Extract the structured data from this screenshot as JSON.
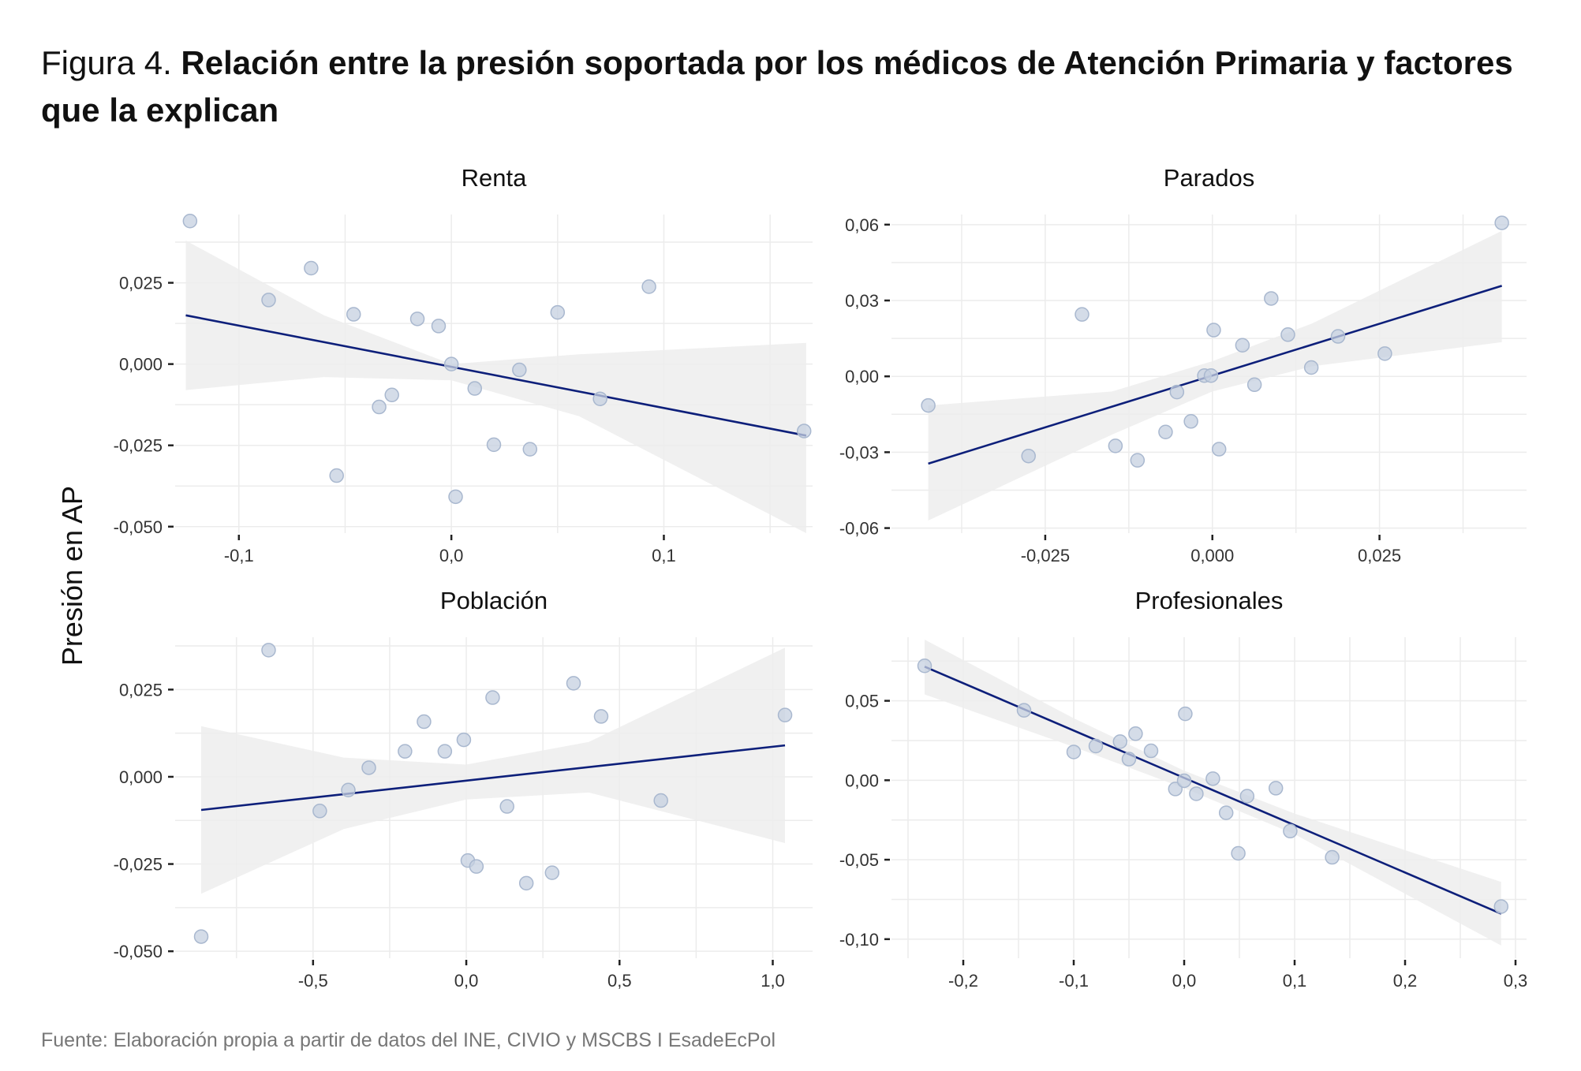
{
  "title": {
    "prefix": "Figura 4.",
    "main": "Relación entre la presión soportada por los médicos de Atención Primaria y factores que la explican"
  },
  "y_axis_label": "Presión en AP",
  "source": "Fuente: Elaboración propia a partir de datos del INE, CIVIO y MSCBS I EsadeEcPol",
  "colors": {
    "point_fill": "#c5d0e0",
    "point_stroke": "#a9b8cf",
    "line": "#0d1f7a",
    "band": "#ededed",
    "grid": "#ececec"
  },
  "chart_data": [
    {
      "type": "scatter",
      "title": "Renta",
      "xlim": [
        -0.13,
        0.17
      ],
      "ylim": [
        -0.052,
        0.046
      ],
      "x_ticks": [
        {
          "v": -0.1,
          "label": "-0,1"
        },
        {
          "v": 0.0,
          "label": "0,0"
        },
        {
          "v": 0.1,
          "label": "0,1"
        }
      ],
      "y_ticks": [
        {
          "v": 0.025,
          "label": "0,025"
        },
        {
          "v": 0.0,
          "label": "0,000"
        },
        {
          "v": -0.025,
          "label": "-0,025"
        },
        {
          "v": -0.05,
          "label": "-0,050"
        }
      ],
      "points": [
        [
          -0.123,
          0.044
        ],
        [
          -0.086,
          0.0197
        ],
        [
          -0.066,
          0.0295
        ],
        [
          -0.046,
          0.0153
        ],
        [
          -0.034,
          -0.0132
        ],
        [
          -0.028,
          -0.0095
        ],
        [
          -0.016,
          0.0139
        ],
        [
          -0.006,
          0.0117
        ],
        [
          0.0,
          0.0
        ],
        [
          0.002,
          -0.0408
        ],
        [
          0.011,
          -0.0075
        ],
        [
          0.02,
          -0.0248
        ],
        [
          0.032,
          -0.0018
        ],
        [
          0.037,
          -0.0262
        ],
        [
          0.05,
          0.0159
        ],
        [
          0.07,
          -0.0107
        ],
        [
          0.093,
          0.0238
        ],
        [
          0.166,
          -0.0206
        ],
        [
          -0.054,
          -0.0343
        ]
      ],
      "fit": {
        "x": [
          -0.125,
          0.167
        ],
        "y": [
          0.015,
          -0.022
        ]
      },
      "band": {
        "x": [
          -0.125,
          -0.06,
          0.0,
          0.06,
          0.167
        ],
        "lower": [
          -0.008,
          -0.004,
          -0.005,
          -0.016,
          -0.052
        ],
        "upper": [
          0.038,
          0.015,
          0.0,
          0.003,
          0.0065
        ]
      }
    },
    {
      "type": "scatter",
      "title": "Parados",
      "xlim": [
        -0.048,
        0.047
      ],
      "ylim": [
        -0.062,
        0.064
      ],
      "x_ticks": [
        {
          "v": -0.025,
          "label": "-0,025"
        },
        {
          "v": 0.0,
          "label": "0,000"
        },
        {
          "v": 0.025,
          "label": "0,025"
        }
      ],
      "y_ticks": [
        {
          "v": 0.06,
          "label": "0,06"
        },
        {
          "v": 0.03,
          "label": "0,03"
        },
        {
          "v": 0.0,
          "label": "0,00"
        },
        {
          "v": -0.03,
          "label": "-0,03"
        },
        {
          "v": -0.06,
          "label": "-0,06"
        }
      ],
      "points": [
        [
          -0.0425,
          -0.0115
        ],
        [
          -0.0275,
          -0.0315
        ],
        [
          -0.0195,
          0.0245
        ],
        [
          -0.0145,
          -0.0275
        ],
        [
          -0.0112,
          -0.0332
        ],
        [
          -0.007,
          -0.022
        ],
        [
          -0.0053,
          -0.0062
        ],
        [
          -0.0032,
          -0.0178
        ],
        [
          -0.0012,
          0.0003
        ],
        [
          -0.0002,
          0.0003
        ],
        [
          0.0002,
          0.0183
        ],
        [
          0.001,
          -0.0288
        ],
        [
          0.0045,
          0.0123
        ],
        [
          0.0063,
          -0.0033
        ],
        [
          0.0088,
          0.0308
        ],
        [
          0.0113,
          0.0165
        ],
        [
          0.0148,
          0.0035
        ],
        [
          0.0188,
          0.0158
        ],
        [
          0.0258,
          0.009
        ],
        [
          0.0433,
          0.0607
        ]
      ],
      "fit": {
        "x": [
          -0.0425,
          0.0433
        ],
        "y": [
          -0.0345,
          0.0358
        ]
      },
      "band": {
        "x": [
          -0.0425,
          -0.015,
          0.0,
          0.015,
          0.0433
        ],
        "lower": [
          -0.057,
          -0.023,
          -0.006,
          0.004,
          0.0135
        ],
        "upper": [
          -0.0115,
          -0.006,
          0.006,
          0.021,
          0.0575
        ]
      }
    },
    {
      "type": "scatter",
      "title": "Población",
      "xlim": [
        -0.95,
        1.13
      ],
      "ylim": [
        -0.052,
        0.04
      ],
      "x_ticks": [
        {
          "v": -0.5,
          "label": "-0,5"
        },
        {
          "v": 0.0,
          "label": "0,0"
        },
        {
          "v": 0.5,
          "label": "0,5"
        },
        {
          "v": 1.0,
          "label": "1,0"
        }
      ],
      "y_ticks": [
        {
          "v": 0.025,
          "label": "0,025"
        },
        {
          "v": 0.0,
          "label": "0,000"
        },
        {
          "v": -0.025,
          "label": "-0,025"
        },
        {
          "v": -0.05,
          "label": "-0,050"
        }
      ],
      "points": [
        [
          -0.865,
          -0.0458
        ],
        [
          -0.645,
          0.0363
        ],
        [
          -0.478,
          -0.0098
        ],
        [
          -0.385,
          -0.0038
        ],
        [
          -0.318,
          0.0026
        ],
        [
          -0.2,
          0.0073
        ],
        [
          -0.138,
          0.0158
        ],
        [
          -0.07,
          0.0073
        ],
        [
          -0.008,
          0.0106
        ],
        [
          0.005,
          -0.024
        ],
        [
          0.033,
          -0.0257
        ],
        [
          0.086,
          0.0227
        ],
        [
          0.133,
          -0.0085
        ],
        [
          0.196,
          -0.0305
        ],
        [
          0.28,
          -0.0275
        ],
        [
          0.35,
          0.0268
        ],
        [
          0.44,
          0.0173
        ],
        [
          0.635,
          -0.0068
        ],
        [
          1.04,
          0.0177
        ]
      ],
      "fit": {
        "x": [
          -0.865,
          1.04
        ],
        "y": [
          -0.0095,
          0.009
        ]
      },
      "band": {
        "x": [
          -0.865,
          -0.4,
          0.0,
          0.4,
          1.04
        ],
        "lower": [
          -0.0335,
          -0.015,
          -0.0065,
          -0.0045,
          -0.019
        ],
        "upper": [
          0.0145,
          0.0055,
          0.0035,
          0.01,
          0.037
        ]
      }
    },
    {
      "type": "scatter",
      "title": "Profesionales",
      "xlim": [
        -0.265,
        0.31
      ],
      "ylim": [
        -0.112,
        0.09
      ],
      "x_ticks": [
        {
          "v": -0.2,
          "label": "-0,2"
        },
        {
          "v": -0.1,
          "label": "-0,1"
        },
        {
          "v": 0.0,
          "label": "0,0"
        },
        {
          "v": 0.1,
          "label": "0,1"
        },
        {
          "v": 0.2,
          "label": "0,2"
        },
        {
          "v": 0.3,
          "label": "0,3"
        }
      ],
      "y_ticks": [
        {
          "v": 0.05,
          "label": "0,05"
        },
        {
          "v": 0.0,
          "label": "0,00"
        },
        {
          "v": -0.05,
          "label": "-0,05"
        },
        {
          "v": -0.1,
          "label": "-0,10"
        }
      ],
      "points": [
        [
          -0.235,
          0.072
        ],
        [
          -0.145,
          0.044
        ],
        [
          -0.1,
          0.0178
        ],
        [
          -0.08,
          0.0215
        ],
        [
          -0.058,
          0.0243
        ],
        [
          -0.05,
          0.0133
        ],
        [
          -0.044,
          0.0293
        ],
        [
          -0.03,
          0.0185
        ],
        [
          -0.008,
          -0.0055
        ],
        [
          0.0,
          -0.0003
        ],
        [
          0.001,
          0.0418
        ],
        [
          0.011,
          -0.0085
        ],
        [
          0.026,
          0.001
        ],
        [
          0.038,
          -0.0205
        ],
        [
          0.049,
          -0.046
        ],
        [
          0.057,
          -0.01
        ],
        [
          0.083,
          -0.005
        ],
        [
          0.096,
          -0.032
        ],
        [
          0.134,
          -0.0485
        ],
        [
          0.287,
          -0.0795
        ]
      ],
      "fit": {
        "x": [
          -0.235,
          0.287
        ],
        "y": [
          0.0715,
          -0.084
        ]
      },
      "band": {
        "x": [
          -0.235,
          -0.1,
          0.0,
          0.1,
          0.287
        ],
        "lower": [
          0.054,
          0.021,
          -0.005,
          -0.034,
          -0.104
        ],
        "upper": [
          0.0885,
          0.039,
          0.006,
          -0.021,
          -0.064
        ]
      }
    }
  ]
}
